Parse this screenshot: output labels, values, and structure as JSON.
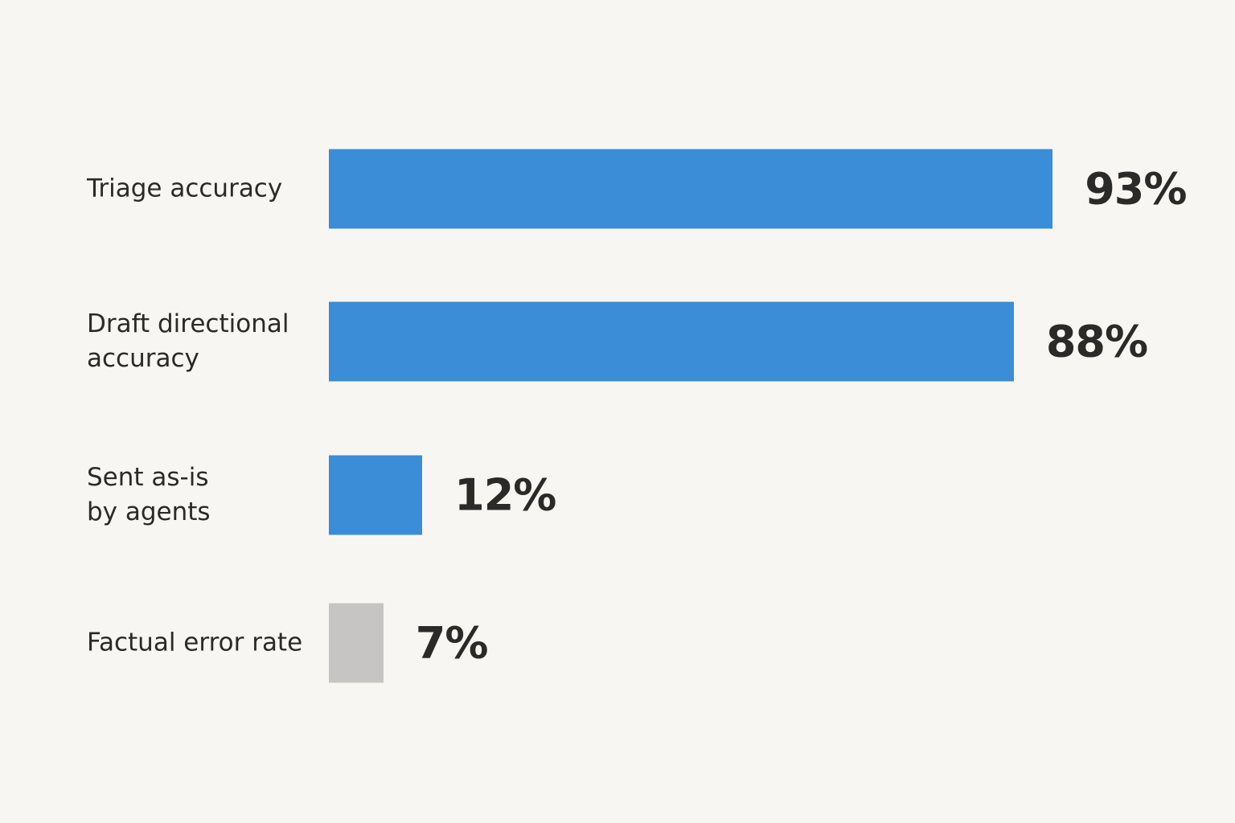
{
  "chart_data": {
    "type": "bar",
    "orientation": "horizontal",
    "categories": [
      "Triage accuracy",
      "Draft directional\naccuracy",
      "Sent as-is\nby agents",
      "Factual error rate"
    ],
    "values": [
      93,
      88,
      12,
      7
    ],
    "value_labels": [
      "93%",
      "88%",
      "12%",
      "7%"
    ],
    "colors": [
      "#3a8dd6",
      "#3a8dd6",
      "#3a8dd6",
      "#c6c5c3"
    ],
    "xlim": [
      0,
      100
    ]
  }
}
